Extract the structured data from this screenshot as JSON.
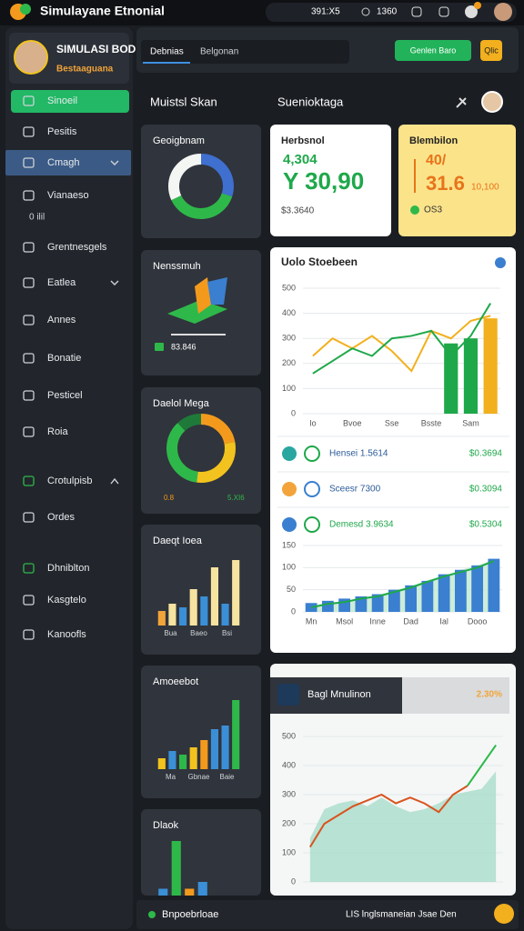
{
  "topbar": {
    "title": "Simulayane Etnonial",
    "time": "391:X5",
    "counter": "1360"
  },
  "sidebar": {
    "profile": {
      "name": "SIMULASI BODNMA",
      "subtitle": "Bestaaguana"
    },
    "menu": [
      "Sinoeil",
      "Pesitis",
      "Cmagh",
      "Vianaeso",
      "Grentnesgels",
      "Eatlea",
      "Annes",
      "Bonatie",
      "Pesticel",
      "Roia",
      "Crotulpisb",
      "Ordes",
      "Dhniblton",
      "Kasgtelo",
      "Kanoofls"
    ],
    "submenu_note": "0 ilil"
  },
  "toolbar": {
    "tabs": [
      "Debnias",
      "Belgonan"
    ],
    "buttons": [
      "Genlen Baro",
      "Qlic"
    ]
  },
  "sections": [
    "Muistsl Skan",
    "Suenioktaga"
  ],
  "mini_cards": [
    {
      "title": "Geoigbnam",
      "type": "donut",
      "values": [
        30,
        38,
        32
      ],
      "colors": [
        "#3f6fcf",
        "#2fb84a",
        "#f4f6f4"
      ]
    },
    {
      "title": "Nenssmuh",
      "type": "icon",
      "label": "83.846"
    },
    {
      "title": "Daelol Mega",
      "type": "donut",
      "values": [
        22,
        30,
        36,
        12
      ],
      "colors": [
        "#f39a1d",
        "#f2c31e",
        "#2fb84a",
        "#1f7a3a"
      ],
      "legend": [
        "0.8",
        "5.XI6"
      ]
    },
    {
      "title": "Daeqt Ioea",
      "type": "bars",
      "ylim": [
        0,
        10
      ],
      "values": [
        2,
        3,
        2.5,
        5,
        4,
        8,
        3,
        9
      ],
      "colors": [
        "#f2a43a",
        "#f6e3a0",
        "#3a8fd6",
        "#f6e3a0",
        "#3a8fd6",
        "#f6e3a0",
        "#3a8fd6",
        "#f6e3a0"
      ],
      "labels": [
        "Bua",
        "Baeo",
        "Bsi"
      ]
    },
    {
      "title": "Amoeebot",
      "type": "bars",
      "ylim": [
        0,
        10
      ],
      "values": [
        1.5,
        2.5,
        2,
        3,
        4,
        5.5,
        6,
        9.5
      ],
      "colors": [
        "#f2c31e",
        "#3a8fd6",
        "#2fb84a",
        "#f2c31e",
        "#f39a1d",
        "#3a8fd6",
        "#3a8fd6",
        "#2fb84a"
      ],
      "labels": [
        "Ma",
        "Gbnae",
        "Baie"
      ]
    },
    {
      "title": "Dlaok",
      "type": "bars",
      "ylim": [
        0,
        10
      ],
      "values": [
        1,
        8,
        1,
        2
      ],
      "colors": [
        "#3a8fd6",
        "#2fb84a",
        "#f39a1d",
        "#3a8fd6"
      ]
    }
  ],
  "stat_cards": [
    {
      "title": "Herbsnol",
      "sub": "4,304",
      "value": "Y 30,90",
      "footer": "$3.3640"
    },
    {
      "title": "Blembilon",
      "sub": "40/",
      "value": "31.6",
      "extra": "10,100",
      "footer": "OS3"
    }
  ],
  "main_chart": {
    "title": "Uolo Stoebeen",
    "type": "combo",
    "categories": [
      "Io",
      null,
      "Bvoe",
      null,
      "Sse",
      null,
      "Bsste",
      null,
      "Sam",
      null
    ],
    "ylim": [
      0,
      500
    ],
    "yticks": [
      0,
      100,
      200,
      300,
      400,
      500
    ],
    "series": [
      {
        "type": "bar",
        "color": "#1fa84a",
        "values": [
          null,
          null,
          null,
          null,
          null,
          null,
          null,
          280,
          300,
          null
        ]
      },
      {
        "type": "bar",
        "color": "#f2b01e",
        "values": [
          null,
          null,
          null,
          null,
          null,
          null,
          null,
          null,
          null,
          380
        ]
      },
      {
        "type": "line",
        "color": "#f2b01e",
        "values": [
          230,
          300,
          260,
          310,
          250,
          170,
          330,
          300,
          370,
          390
        ]
      },
      {
        "type": "line",
        "color": "#1fa84a",
        "values": [
          160,
          210,
          260,
          230,
          300,
          310,
          330,
          230,
          310,
          440
        ]
      }
    ]
  },
  "list": [
    {
      "name": "Hensei 1.5614",
      "amount": "$0.3694"
    },
    {
      "name": "Sceesr 7300",
      "amount": "$0.3094"
    },
    {
      "name": "Demesd 3.9634",
      "amount": "$0.5304"
    }
  ],
  "trend_chart": {
    "type": "combo",
    "categories": [
      "Mn",
      null,
      "Msol",
      null,
      "Inne",
      null,
      "Dad",
      null,
      "Ial",
      null,
      "Dooo",
      null
    ],
    "ylim": [
      0,
      150
    ],
    "yticks": [
      0,
      50,
      100,
      150
    ],
    "series": [
      {
        "type": "area",
        "color": "#bfe8cf",
        "values": [
          15,
          20,
          25,
          30,
          38,
          48,
          58,
          72,
          82,
          95,
          105,
          118
        ]
      },
      {
        "type": "bar",
        "color": "#3a7fd0",
        "values": [
          20,
          25,
          30,
          35,
          40,
          50,
          60,
          70,
          85,
          95,
          105,
          120
        ]
      },
      {
        "type": "line",
        "color": "#1fa84a",
        "values": [
          10,
          18,
          22,
          30,
          35,
          45,
          55,
          68,
          80,
          90,
          100,
          115
        ]
      }
    ]
  },
  "bottom_card": {
    "title": "Bagl Mnulinon",
    "badge": "2.30%",
    "chart": {
      "type": "combo",
      "ylim": [
        0,
        500
      ],
      "yticks": [
        0,
        100,
        200,
        300,
        400,
        500
      ],
      "series": [
        {
          "type": "area",
          "color": "#a9dccb",
          "values": [
            150,
            250,
            270,
            280,
            260,
            290,
            260,
            240,
            250,
            270,
            300,
            310,
            320,
            380
          ]
        },
        {
          "type": "line",
          "color": "#d9531e",
          "values": [
            120,
            200,
            230,
            260,
            280,
            300,
            270,
            290,
            270,
            240,
            300,
            330,
            null,
            null
          ]
        },
        {
          "type": "line",
          "color": "#2fb84a",
          "values": [
            null,
            null,
            null,
            null,
            null,
            null,
            null,
            null,
            null,
            null,
            null,
            330,
            400,
            470
          ]
        }
      ]
    }
  },
  "footer": {
    "left": "Bnpoebrloae",
    "right": "LIS lnglsmaneian Jsae Den"
  }
}
